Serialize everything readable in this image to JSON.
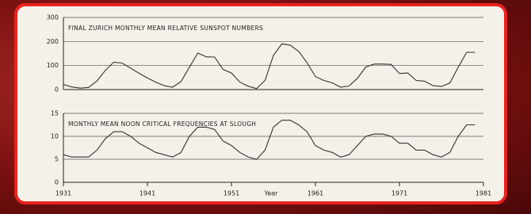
{
  "chart_data": [
    {
      "type": "line",
      "title": "FINAL ZURICH MONTHLY MEAN RELATIVE SUNSPOT NUMBERS",
      "x": [
        1931,
        1932,
        1933,
        1934,
        1935,
        1936,
        1937,
        1938,
        1939,
        1940,
        1941,
        1942,
        1943,
        1944,
        1945,
        1946,
        1947,
        1948,
        1949,
        1950,
        1951,
        1952,
        1953,
        1954,
        1955,
        1956,
        1957,
        1958,
        1959,
        1960,
        1961,
        1962,
        1963,
        1964,
        1965,
        1966,
        1967,
        1968,
        1969,
        1970,
        1971,
        1972,
        1973,
        1974,
        1975,
        1976,
        1977,
        1978,
        1979,
        1980
      ],
      "values": [
        21,
        11,
        6,
        9,
        36,
        80,
        114,
        110,
        89,
        68,
        48,
        31,
        16,
        10,
        33,
        93,
        152,
        136,
        135,
        84,
        69,
        31,
        14,
        4,
        38,
        142,
        190,
        185,
        159,
        112,
        54,
        38,
        28,
        10,
        15,
        47,
        94,
        106,
        106,
        105,
        67,
        69,
        38,
        35,
        16,
        13,
        27,
        93,
        155,
        155
      ],
      "color": "#333333",
      "xlim": [
        1931,
        1981
      ],
      "ylim": [
        0,
        300
      ],
      "yticks": [
        0,
        100,
        200,
        300
      ],
      "grid": true
    },
    {
      "type": "line",
      "title": "MONTHLY MEAN NOON CRITICAL FREQUENCIES AT SLOUGH",
      "x": [
        1931,
        1932,
        1933,
        1934,
        1935,
        1936,
        1937,
        1938,
        1939,
        1940,
        1941,
        1942,
        1943,
        1944,
        1945,
        1946,
        1947,
        1948,
        1949,
        1950,
        1951,
        1952,
        1953,
        1954,
        1955,
        1956,
        1957,
        1958,
        1959,
        1960,
        1961,
        1962,
        1963,
        1964,
        1965,
        1966,
        1967,
        1968,
        1969,
        1970,
        1971,
        1972,
        1973,
        1974,
        1975,
        1976,
        1977,
        1978,
        1979,
        1980
      ],
      "values": [
        6,
        5.5,
        5.5,
        5.5,
        7,
        9.5,
        11,
        11,
        10,
        8.5,
        7.5,
        6.5,
        6,
        5.5,
        6.5,
        10,
        12,
        12,
        11.5,
        9,
        8,
        6.5,
        5.5,
        5,
        7,
        12,
        13.5,
        13.5,
        12.5,
        11,
        8,
        7,
        6.5,
        5.5,
        6,
        8,
        10,
        10.5,
        10.5,
        10,
        8.5,
        8.5,
        7,
        7,
        6,
        5.5,
        6.5,
        10,
        12.5,
        12.5
      ],
      "color": "#333333",
      "xlim": [
        1931,
        1981
      ],
      "ylim": [
        0,
        15
      ],
      "yticks": [
        0,
        5,
        10,
        15
      ],
      "xticks": [
        1931,
        1941,
        1951,
        1961,
        1971,
        1981
      ],
      "xlabel": "Year",
      "grid": true
    }
  ]
}
